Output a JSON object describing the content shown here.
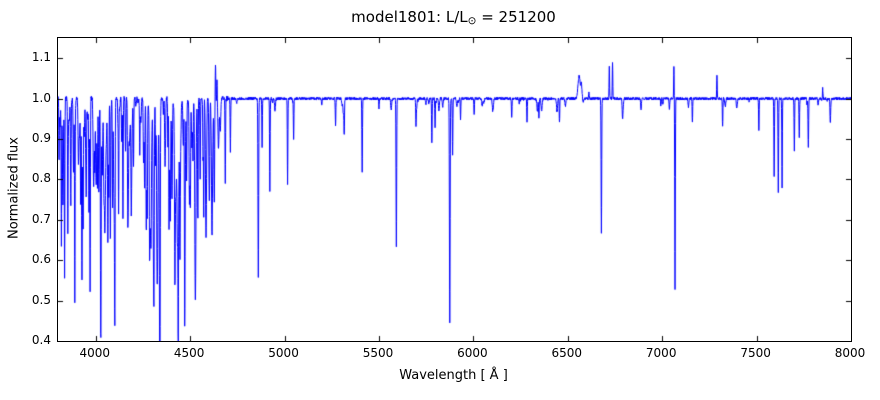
{
  "figure": {
    "title_prefix": "model1801: L/L",
    "title_sub": "⊙",
    "title_suffix": " = 251200",
    "xlabel": "Wavelength [ Å ]",
    "ylabel": "Normalized flux"
  },
  "chart_data": {
    "type": "line",
    "title": "model1801: L/L⊙ = 251200",
    "xlabel": "Wavelength [ Å ]",
    "ylabel": "Normalized flux",
    "series_color": "#0000ff",
    "axis_color": "#000000",
    "background_color": "#ffffff",
    "xlim": [
      3800,
      8000
    ],
    "ylim": [
      0.4,
      1.15
    ],
    "xticks": [
      4000,
      4500,
      5000,
      5500,
      6000,
      6500,
      7000,
      7500,
      8000
    ],
    "yticks": [
      0.4,
      0.5,
      0.6,
      0.7,
      0.8,
      0.9,
      1.0,
      1.1
    ],
    "continuum": 1.0,
    "lines_format": [
      "wavelength_A",
      "flux_at_line_center",
      "sigma_A"
    ],
    "lines": [
      [
        3818,
        0.64,
        1.4
      ],
      [
        3835,
        0.56,
        1.4
      ],
      [
        3852,
        0.7,
        1.4
      ],
      [
        3868,
        0.8,
        1.4
      ],
      [
        3889,
        0.53,
        1.4
      ],
      [
        3920,
        0.74,
        1.4
      ],
      [
        3933,
        0.68,
        1.4
      ],
      [
        3950,
        0.8,
        1.4
      ],
      [
        3964,
        0.76,
        1.4
      ],
      [
        3970,
        0.53,
        1.4
      ],
      [
        3995,
        0.84,
        1.4
      ],
      [
        4009,
        0.79,
        1.4
      ],
      [
        4026,
        0.57,
        1.5
      ],
      [
        4069,
        0.76,
        1.4
      ],
      [
        4089,
        0.73,
        1.4
      ],
      [
        4101,
        0.52,
        1.6
      ],
      [
        4121,
        0.71,
        1.4
      ],
      [
        4144,
        0.7,
        1.4
      ],
      [
        4169,
        0.88,
        1.4
      ],
      [
        4200,
        0.83,
        1.4
      ],
      [
        4233,
        0.88,
        1.4
      ],
      [
        4267,
        0.81,
        1.4
      ],
      [
        4317,
        0.84,
        1.4
      ],
      [
        4340,
        0.57,
        1.7
      ],
      [
        4388,
        0.7,
        1.4
      ],
      [
        4437,
        0.87,
        1.4
      ],
      [
        4471,
        0.5,
        1.6
      ],
      [
        4481,
        0.83,
        1.4
      ],
      [
        4515,
        0.86,
        1.4
      ],
      [
        4541,
        0.81,
        1.4
      ],
      [
        4553,
        0.8,
        1.4
      ],
      [
        4568,
        0.85,
        1.4
      ],
      [
        4634,
        1.09,
        1.4
      ],
      [
        4642,
        1.05,
        1.4
      ],
      [
        4686,
        0.79,
        1.5
      ],
      [
        4713,
        0.87,
        1.4
      ],
      [
        4861,
        0.56,
        1.8
      ],
      [
        4881,
        0.88,
        1.4
      ],
      [
        4922,
        0.77,
        1.4
      ],
      [
        5016,
        0.79,
        1.4
      ],
      [
        5048,
        0.9,
        1.4
      ],
      [
        5270,
        0.93,
        1.4
      ],
      [
        5316,
        0.92,
        1.4
      ],
      [
        5411,
        0.82,
        1.5
      ],
      [
        5592,
        0.63,
        1.6
      ],
      [
        5696,
        0.93,
        1.4
      ],
      [
        5780,
        0.89,
        1.4
      ],
      [
        5797,
        0.93,
        1.4
      ],
      [
        5875,
        0.447,
        1.8
      ],
      [
        5890,
        0.86,
        1.4
      ],
      [
        5932,
        0.95,
        1.4
      ],
      [
        6004,
        0.96,
        1.4
      ],
      [
        6203,
        0.95,
        1.4
      ],
      [
        6284,
        0.94,
        1.4
      ],
      [
        6347,
        0.95,
        1.4
      ],
      [
        6456,
        0.94,
        1.4
      ],
      [
        6560,
        1.055,
        6.0
      ],
      [
        6572,
        1.03,
        3.0
      ],
      [
        6612,
        1.02,
        1.4
      ],
      [
        6678,
        0.67,
        1.6
      ],
      [
        6720,
        1.08,
        1.4
      ],
      [
        6737,
        1.09,
        1.4
      ],
      [
        7062,
        1.08,
        1.3
      ],
      [
        7068,
        0.53,
        1.5
      ],
      [
        7160,
        0.94,
        1.4
      ],
      [
        7290,
        1.06,
        1.4
      ],
      [
        7320,
        0.93,
        1.4
      ],
      [
        7512,
        0.92,
        1.4
      ],
      [
        7593,
        0.81,
        1.4
      ],
      [
        7615,
        0.77,
        1.5
      ],
      [
        7635,
        0.78,
        1.4
      ],
      [
        7700,
        0.87,
        1.4
      ],
      [
        7726,
        0.9,
        1.4
      ],
      [
        7774,
        0.88,
        1.6
      ],
      [
        7850,
        1.03,
        1.4
      ],
      [
        7890,
        0.95,
        1.4
      ]
    ],
    "noise": {
      "seed": 7,
      "continuum_amplitude_blue": 0.006,
      "continuum_amplitude_red": 0.0035,
      "blue_red_boundary_A": 4700,
      "forests": [
        {
          "range": [
            3805,
            4680
          ],
          "count": 160,
          "max_depth": 0.3
        },
        {
          "range": [
            4700,
            8000
          ],
          "count": 60,
          "max_depth": 0.035
        }
      ]
    }
  }
}
